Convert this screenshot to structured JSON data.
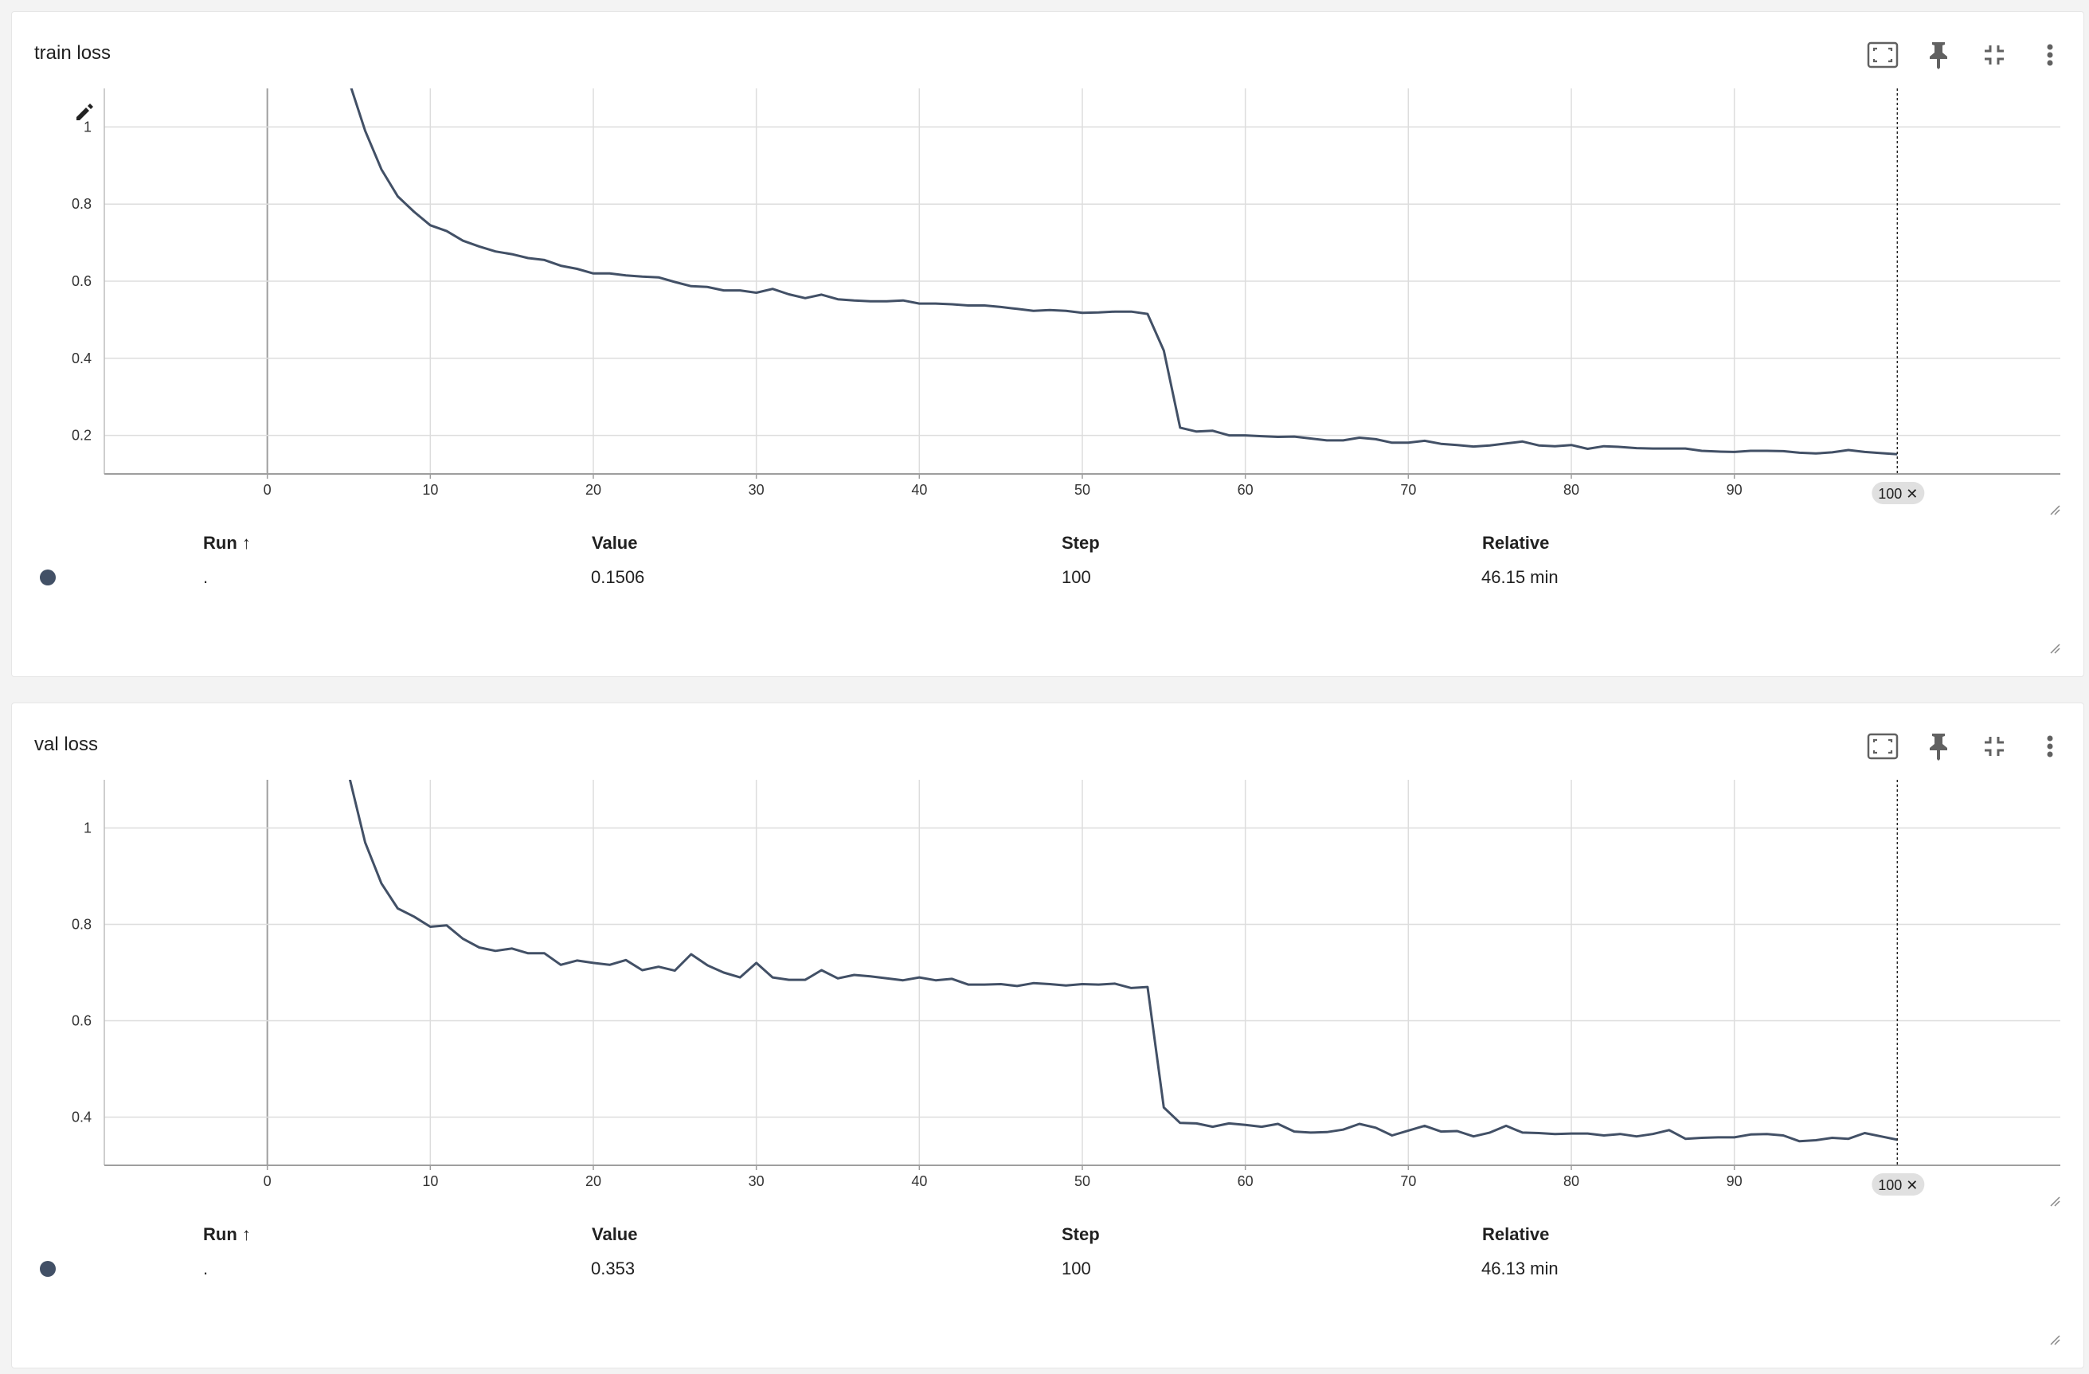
{
  "colors": {
    "series": "#425066",
    "grid": "#dddddd",
    "axis": "#9e9e9e",
    "icon": "#616161"
  },
  "icons": [
    "fullscreen-icon",
    "pin-icon",
    "collapse-icon",
    "more-vert-icon",
    "pencil-icon",
    "resize-handle-icon"
  ],
  "cards": [
    {
      "title": "train loss",
      "step_badge": "100 ✕",
      "table": {
        "headers": {
          "run": "Run ↑",
          "value": "Value",
          "step": "Step",
          "relative": "Relative"
        },
        "row": {
          "run": ".",
          "value": "0.1506",
          "step": "100",
          "relative": "46.15 min"
        }
      }
    },
    {
      "title": "val loss",
      "step_badge": "100 ✕",
      "table": {
        "headers": {
          "run": "Run ↑",
          "value": "Value",
          "step": "Step",
          "relative": "Relative"
        },
        "row": {
          "run": ".",
          "value": "0.353",
          "step": "100",
          "relative": "46.13 min"
        }
      }
    }
  ],
  "chart_data": [
    {
      "type": "line",
      "title": "train loss",
      "xlim": [
        -10,
        110
      ],
      "ylim": [
        0.1,
        1.1
      ],
      "xticks": [
        0,
        10,
        20,
        30,
        40,
        50,
        60,
        70,
        80,
        90
      ],
      "yticks": [
        0.2,
        0.4,
        0.6,
        0.8,
        1
      ],
      "ytick_labels": [
        "0.2",
        "0.4",
        "0.6",
        "0.8",
        "1"
      ],
      "grid": true,
      "series": [
        {
          "x": [
            5,
            6,
            7,
            8,
            9,
            10,
            11,
            12,
            13,
            14,
            15,
            16,
            17,
            18,
            19,
            20,
            21,
            22,
            23,
            24,
            25,
            26,
            27,
            28,
            29,
            30,
            31,
            32,
            33,
            34,
            35,
            36,
            37,
            38,
            39,
            40,
            41,
            42,
            43,
            44,
            45,
            46,
            47,
            48,
            49,
            50,
            51,
            52,
            53,
            54,
            55,
            56,
            57,
            58,
            59,
            60,
            61,
            62,
            63,
            64,
            65,
            66,
            67,
            68,
            69,
            70,
            71,
            72,
            73,
            74,
            75,
            76,
            77,
            78,
            79,
            80,
            81,
            82,
            83,
            84,
            85,
            86,
            87,
            88,
            89,
            90,
            91,
            92,
            93,
            94,
            95,
            96,
            97,
            98,
            99,
            100
          ],
          "y": [
            1.12,
            0.99,
            0.89,
            0.82,
            0.78,
            0.745,
            0.73,
            0.705,
            0.69,
            0.677,
            0.67,
            0.66,
            0.655,
            0.64,
            0.632,
            0.62,
            0.62,
            0.615,
            0.612,
            0.61,
            0.598,
            0.587,
            0.585,
            0.576,
            0.576,
            0.57,
            0.58,
            0.566,
            0.556,
            0.565,
            0.553,
            0.55,
            0.548,
            0.548,
            0.55,
            0.542,
            0.542,
            0.54,
            0.537,
            0.537,
            0.533,
            0.528,
            0.523,
            0.525,
            0.523,
            0.518,
            0.519,
            0.521,
            0.521,
            0.515,
            0.42,
            0.22,
            0.21,
            0.212,
            0.2,
            0.2,
            0.198,
            0.196,
            0.197,
            0.192,
            0.187,
            0.187,
            0.194,
            0.19,
            0.181,
            0.181,
            0.186,
            0.178,
            0.175,
            0.171,
            0.174,
            0.179,
            0.184,
            0.174,
            0.172,
            0.175,
            0.165,
            0.172,
            0.17,
            0.167,
            0.166,
            0.166,
            0.166,
            0.16,
            0.158,
            0.157,
            0.16,
            0.16,
            0.159,
            0.155,
            0.153,
            0.156,
            0.162,
            0.157,
            0.154,
            0.151
          ]
        }
      ]
    },
    {
      "type": "line",
      "title": "val loss",
      "xlim": [
        -10,
        110
      ],
      "ylim": [
        0.3,
        1.1
      ],
      "xticks": [
        0,
        10,
        20,
        30,
        40,
        50,
        60,
        70,
        80,
        90
      ],
      "yticks": [
        0.4,
        0.6,
        0.8,
        1
      ],
      "ytick_labels": [
        "0.4",
        "0.6",
        "0.8",
        "1"
      ],
      "grid": true,
      "series": [
        {
          "x": [
            5,
            6,
            7,
            8,
            9,
            10,
            11,
            12,
            13,
            14,
            15,
            16,
            17,
            18,
            19,
            20,
            21,
            22,
            23,
            24,
            25,
            26,
            27,
            28,
            29,
            30,
            31,
            32,
            33,
            34,
            35,
            36,
            37,
            38,
            39,
            40,
            41,
            42,
            43,
            44,
            45,
            46,
            47,
            48,
            49,
            50,
            51,
            52,
            53,
            54,
            55,
            56,
            57,
            58,
            59,
            60,
            61,
            62,
            63,
            64,
            65,
            66,
            67,
            68,
            69,
            70,
            71,
            72,
            73,
            74,
            75,
            76,
            77,
            78,
            79,
            80,
            81,
            82,
            83,
            84,
            85,
            86,
            87,
            88,
            89,
            90,
            91,
            92,
            93,
            94,
            95,
            96,
            97,
            98,
            99,
            100
          ],
          "y": [
            1.11,
            0.97,
            0.885,
            0.833,
            0.816,
            0.795,
            0.798,
            0.77,
            0.752,
            0.745,
            0.75,
            0.74,
            0.74,
            0.716,
            0.725,
            0.72,
            0.716,
            0.726,
            0.705,
            0.712,
            0.704,
            0.738,
            0.715,
            0.7,
            0.69,
            0.72,
            0.69,
            0.685,
            0.685,
            0.705,
            0.688,
            0.695,
            0.692,
            0.688,
            0.684,
            0.69,
            0.684,
            0.687,
            0.675,
            0.675,
            0.676,
            0.672,
            0.678,
            0.676,
            0.673,
            0.676,
            0.675,
            0.677,
            0.668,
            0.67,
            0.42,
            0.388,
            0.387,
            0.38,
            0.387,
            0.384,
            0.38,
            0.386,
            0.37,
            0.368,
            0.369,
            0.374,
            0.386,
            0.378,
            0.362,
            0.372,
            0.382,
            0.37,
            0.371,
            0.36,
            0.368,
            0.382,
            0.368,
            0.367,
            0.365,
            0.366,
            0.366,
            0.362,
            0.365,
            0.36,
            0.365,
            0.373,
            0.355,
            0.357,
            0.358,
            0.358,
            0.364,
            0.365,
            0.362,
            0.35,
            0.352,
            0.357,
            0.355,
            0.367,
            0.36,
            0.353
          ]
        }
      ]
    }
  ]
}
